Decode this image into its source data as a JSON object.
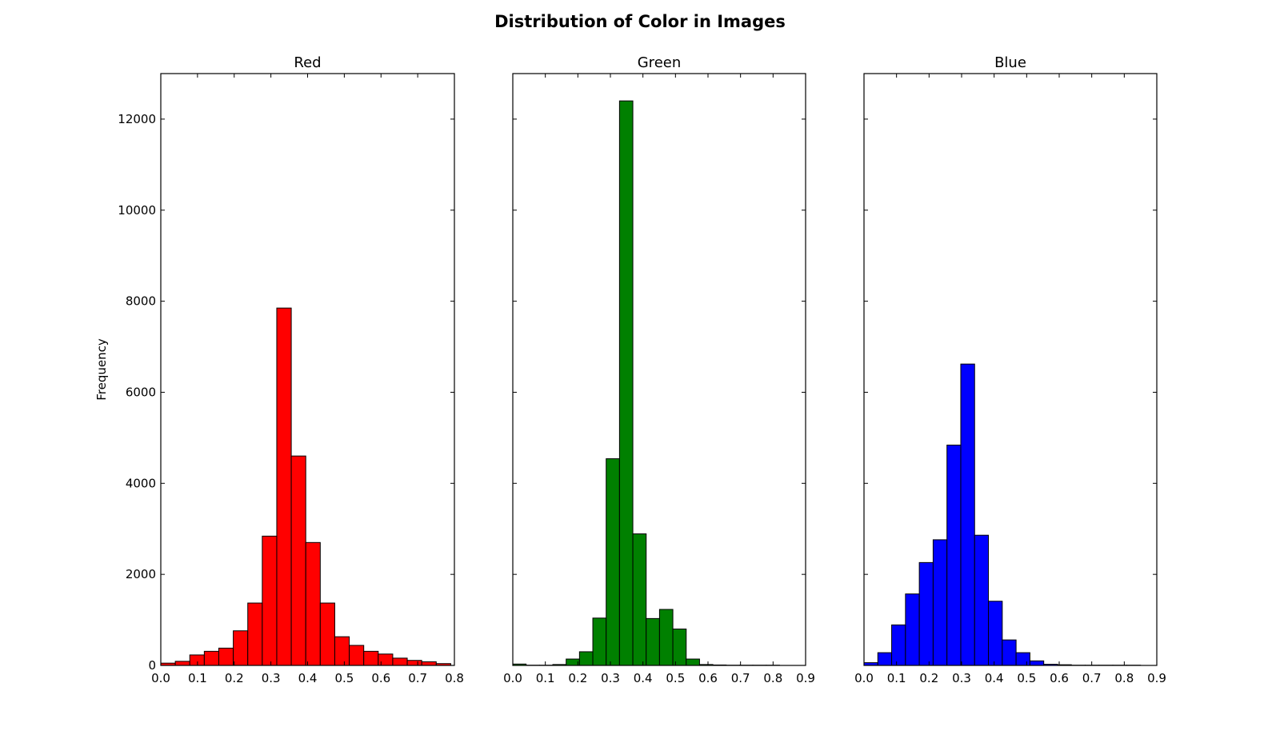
{
  "title": "Distribution of Color in Images",
  "ylabel": "Frequency",
  "ylim": [
    0,
    13000
  ],
  "yticks": [
    0,
    2000,
    4000,
    6000,
    8000,
    10000,
    12000
  ],
  "chart_data": [
    {
      "type": "bar",
      "title": "Red",
      "color": "#ff0000",
      "xlim": [
        0.0,
        0.8
      ],
      "xticks": [
        0.0,
        0.1,
        0.2,
        0.3,
        0.4,
        0.5,
        0.6,
        0.7,
        0.8
      ],
      "bin_start": 0.0,
      "bin_width": 0.0395,
      "values": [
        50,
        90,
        230,
        310,
        380,
        760,
        1370,
        2840,
        7850,
        4600,
        2700,
        1370,
        630,
        440,
        310,
        250,
        160,
        110,
        80,
        40
      ]
    },
    {
      "type": "bar",
      "title": "Green",
      "color": "#008000",
      "xlim": [
        0.0,
        0.9
      ],
      "xticks": [
        0.0,
        0.1,
        0.2,
        0.3,
        0.4,
        0.5,
        0.6,
        0.7,
        0.8,
        0.9
      ],
      "bin_start": 0.0,
      "bin_width": 0.041,
      "values": [
        30,
        5,
        5,
        20,
        140,
        300,
        1040,
        4540,
        12400,
        2890,
        1030,
        1230,
        800,
        140,
        20,
        10,
        5,
        5,
        5,
        5
      ]
    },
    {
      "type": "bar",
      "title": "Blue",
      "color": "#0000ff",
      "xlim": [
        0.0,
        0.9
      ],
      "xticks": [
        0.0,
        0.1,
        0.2,
        0.3,
        0.4,
        0.5,
        0.6,
        0.7,
        0.8,
        0.9
      ],
      "bin_start": 0.0,
      "bin_width": 0.0425,
      "values": [
        60,
        280,
        890,
        1570,
        2260,
        2760,
        4840,
        6620,
        2860,
        1410,
        560,
        280,
        100,
        25,
        15,
        5,
        5,
        5,
        5,
        5
      ]
    }
  ]
}
